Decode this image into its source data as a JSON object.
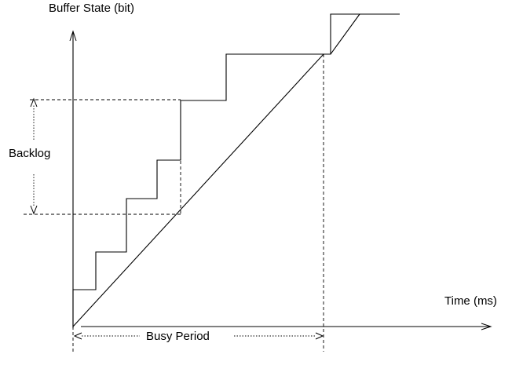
{
  "labels": {
    "y_axis": "Buffer State  (bit)",
    "x_axis": "Time  (ms)",
    "backlog": "Backlog",
    "busy_period": "Busy Period"
  },
  "colors": {
    "line": "#000000",
    "background": "#ffffff"
  }
}
